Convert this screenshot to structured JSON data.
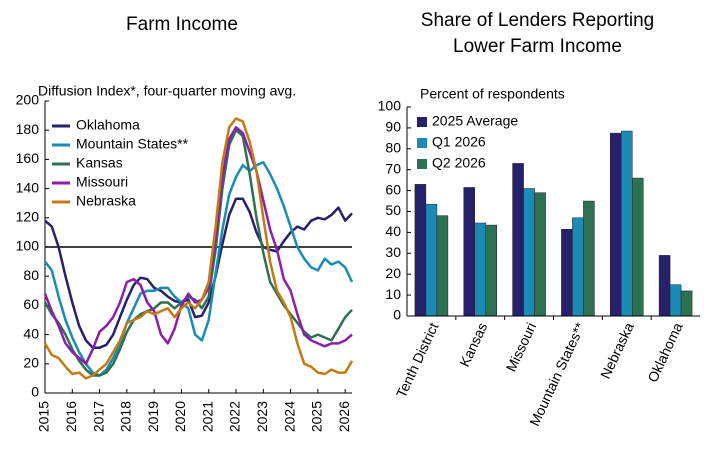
{
  "chart_data": [
    {
      "type": "line",
      "title": "Farm Income",
      "subtitle": "Diffusion Index*, four-quarter moving avg.",
      "x": [
        2015,
        2015.25,
        2015.5,
        2015.75,
        2016,
        2016.25,
        2016.5,
        2016.75,
        2017,
        2017.25,
        2017.5,
        2017.75,
        2018,
        2018.25,
        2018.5,
        2018.75,
        2019,
        2019.25,
        2019.5,
        2019.75,
        2020,
        2020.25,
        2020.5,
        2020.75,
        2021,
        2021.25,
        2021.5,
        2021.75,
        2022,
        2022.25,
        2022.5,
        2022.75,
        2023,
        2023.25,
        2023.5,
        2023.75,
        2024,
        2024.25,
        2024.5,
        2024.75,
        2025,
        2025.25,
        2025.5,
        2025.75,
        2026,
        2026.25
      ],
      "series": [
        {
          "name": "Oklahoma",
          "color": "#27216b",
          "values": [
            118,
            114,
            100,
            80,
            62,
            46,
            36,
            31,
            31,
            33,
            40,
            52,
            64,
            74,
            79,
            78,
            72,
            70,
            66,
            63,
            62,
            64,
            52,
            53,
            62,
            80,
            102,
            122,
            133,
            133,
            124,
            110,
            100,
            98,
            97,
            104,
            110,
            114,
            112,
            118,
            120,
            119,
            122,
            127,
            118,
            123
          ]
        },
        {
          "name": "Mountain States**",
          "color": "#1a8bb5",
          "values": [
            90,
            84,
            66,
            50,
            38,
            28,
            20,
            14,
            12,
            16,
            24,
            34,
            48,
            58,
            68,
            70,
            70,
            72,
            72,
            66,
            62,
            58,
            40,
            36,
            50,
            82,
            112,
            136,
            148,
            156,
            152,
            156,
            158,
            150,
            140,
            128,
            114,
            100,
            92,
            86,
            84,
            92,
            88,
            90,
            86,
            76
          ]
        },
        {
          "name": "Kansas",
          "color": "#2e7152",
          "values": [
            62,
            54,
            48,
            40,
            30,
            22,
            16,
            12,
            12,
            14,
            20,
            30,
            42,
            50,
            54,
            56,
            58,
            62,
            62,
            58,
            62,
            66,
            64,
            58,
            66,
            98,
            140,
            170,
            180,
            176,
            150,
            120,
            96,
            76,
            68,
            60,
            54,
            48,
            42,
            38,
            40,
            38,
            36,
            44,
            52,
            57
          ]
        },
        {
          "name": "Missouri",
          "color": "#8b1fa9",
          "values": [
            68,
            56,
            46,
            34,
            28,
            24,
            20,
            30,
            42,
            46,
            52,
            62,
            76,
            78,
            74,
            62,
            56,
            40,
            34,
            44,
            60,
            68,
            62,
            64,
            72,
            106,
            148,
            174,
            182,
            178,
            165,
            152,
            132,
            112,
            98,
            78,
            70,
            54,
            40,
            36,
            34,
            32,
            34,
            34,
            36,
            40
          ]
        },
        {
          "name": "Nebraska",
          "color": "#c47a14",
          "values": [
            34,
            26,
            24,
            18,
            13,
            14,
            10,
            12,
            16,
            20,
            28,
            36,
            48,
            50,
            52,
            56,
            54,
            56,
            58,
            52,
            58,
            62,
            58,
            64,
            76,
            114,
            158,
            182,
            188,
            186,
            172,
            152,
            120,
            90,
            70,
            62,
            52,
            34,
            20,
            18,
            14,
            13,
            16,
            14,
            14,
            22
          ]
        }
      ],
      "xlim": [
        2015,
        2026.25
      ],
      "xticks": [
        2015,
        2016,
        2017,
        2018,
        2019,
        2020,
        2021,
        2022,
        2023,
        2024,
        2025,
        2026
      ],
      "ylim": [
        0,
        200
      ],
      "yticks": [
        0,
        20,
        40,
        60,
        80,
        100,
        120,
        140,
        160,
        180,
        200
      ],
      "reference_line": 100,
      "legend": "upper-left"
    },
    {
      "type": "bar",
      "title": "Share of Lenders Reporting Lower Farm Income",
      "subtitle": "Percent of respondents",
      "categories": [
        "Tenth District",
        "Kansas",
        "Missouri",
        "Mountain States**",
        "Nebraska",
        "Oklahoma"
      ],
      "series": [
        {
          "name": "2025 Average",
          "color": "#27216b",
          "values": [
            63,
            61.5,
            73,
            41.5,
            87.5,
            29
          ]
        },
        {
          "name": "Q1 2026",
          "color": "#1a8bb5",
          "values": [
            53.5,
            44.5,
            61,
            47,
            88.5,
            15
          ]
        },
        {
          "name": "Q2 2026",
          "color": "#2e7152",
          "values": [
            48,
            43.5,
            59,
            55,
            66,
            12
          ]
        }
      ],
      "ylim": [
        0,
        100
      ],
      "yticks": [
        0,
        10,
        20,
        30,
        40,
        50,
        60,
        70,
        80,
        90,
        100
      ],
      "legend": "upper-left"
    }
  ]
}
